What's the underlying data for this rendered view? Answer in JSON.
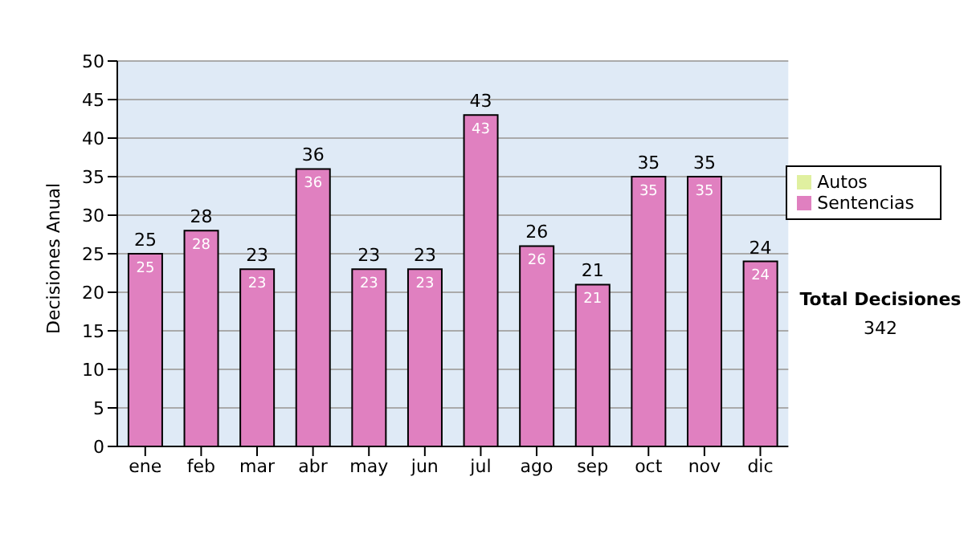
{
  "chart_data": {
    "type": "bar",
    "ylabel": "Decisiones Anual",
    "categories": [
      "ene",
      "feb",
      "mar",
      "abr",
      "may",
      "jun",
      "jul",
      "ago",
      "sep",
      "oct",
      "nov",
      "dic"
    ],
    "series": [
      {
        "name": "Sentencias",
        "color": "#e080c0",
        "values": [
          25,
          28,
          23,
          36,
          23,
          23,
          43,
          26,
          21,
          35,
          35,
          24
        ]
      },
      {
        "name": "Autos",
        "color": "#e0f0a0",
        "values": [
          null,
          null,
          null,
          null,
          null,
          null,
          null,
          null,
          null,
          null,
          null,
          null
        ]
      }
    ],
    "stacked": true,
    "data_labels": true,
    "totals": [
      "25",
      "28",
      "23",
      "36",
      "23",
      "23",
      "43",
      "26",
      "21",
      "35",
      "35",
      "24"
    ],
    "ylim": [
      0,
      50
    ],
    "yticks": [
      0,
      5,
      10,
      15,
      20,
      25,
      30,
      35,
      40,
      45,
      50
    ],
    "grid": "y",
    "legend": "right",
    "annotations": [
      "Total Decisiones",
      "342"
    ]
  }
}
